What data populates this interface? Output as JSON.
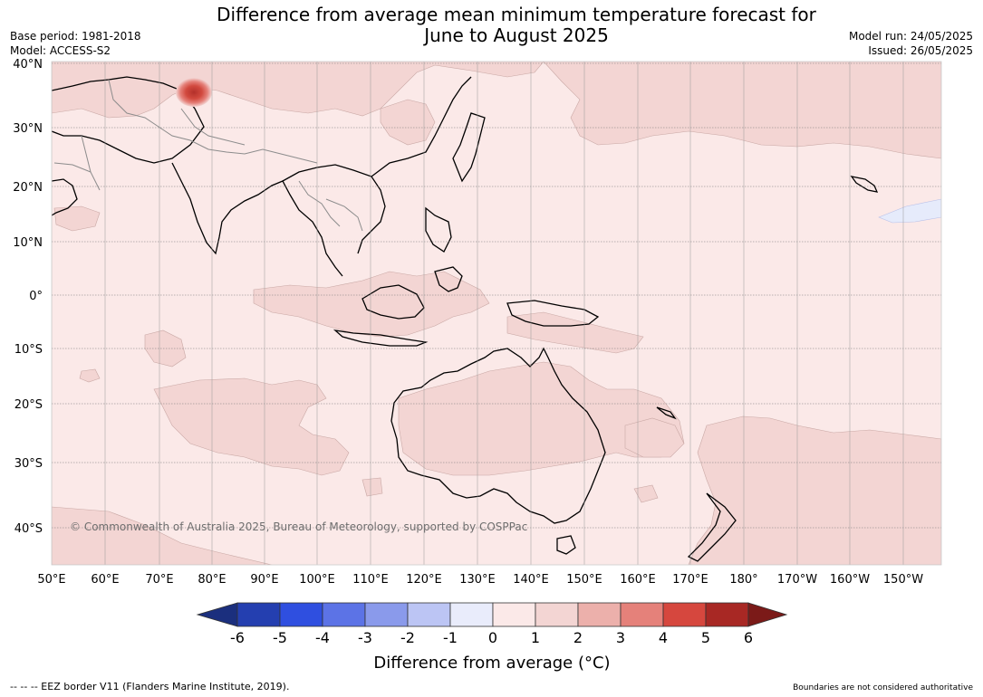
{
  "title": {
    "line1": "Difference from average mean minimum temperature forecast for",
    "line2": "June to August 2025"
  },
  "meta": {
    "base_period": "Base period: 1981-2018",
    "model": "Model: ACCESS-S2",
    "model_run": "Model run: 24/05/2025",
    "issued": "Issued: 26/05/2025"
  },
  "map": {
    "lat_labels": [
      "40°N",
      "30°N",
      "20°N",
      "10°N",
      "0°",
      "10°S",
      "20°S",
      "30°S",
      "40°S"
    ],
    "lon_labels": [
      "50°E",
      "60°E",
      "70°E",
      "80°E",
      "90°E",
      "100°E",
      "110°E",
      "120°E",
      "130°E",
      "140°E",
      "150°E",
      "160°E",
      "170°E",
      "180°",
      "170°W",
      "160°W",
      "150°W"
    ],
    "copyright": "© Commonwealth of Australia 2025, Bureau of Meteorology, supported by COSPPac",
    "colors": {
      "anom_0_1": "#fbe9e8",
      "anom_1_2": "#f3d5d3",
      "anom_minus1_0": "#e6ebfb",
      "hotspot": "#d24a3f",
      "land_outline": "#000000",
      "border": "#8c8c8c"
    }
  },
  "colorbar": {
    "tick_labels": [
      "-6",
      "-5",
      "-4",
      "-3",
      "-2",
      "-1",
      "0",
      "1",
      "2",
      "3",
      "4",
      "5",
      "6"
    ],
    "colors": [
      "#1b2f7e",
      "#243fb0",
      "#2f4fe0",
      "#5c73e6",
      "#8a9aeb",
      "#bcc5f4",
      "#e9ecfb",
      "#fbe9e8",
      "#f3d5d3",
      "#ecb0ab",
      "#e5817a",
      "#d6473e",
      "#a82824",
      "#7b1a18"
    ],
    "title": "Difference from average (°C)"
  },
  "footer": {
    "eez_note": "--  --  -- EEZ border V11 (Flanders Marine Institute, 2019).",
    "disclaimer": "Boundaries are not considered authoritative"
  }
}
